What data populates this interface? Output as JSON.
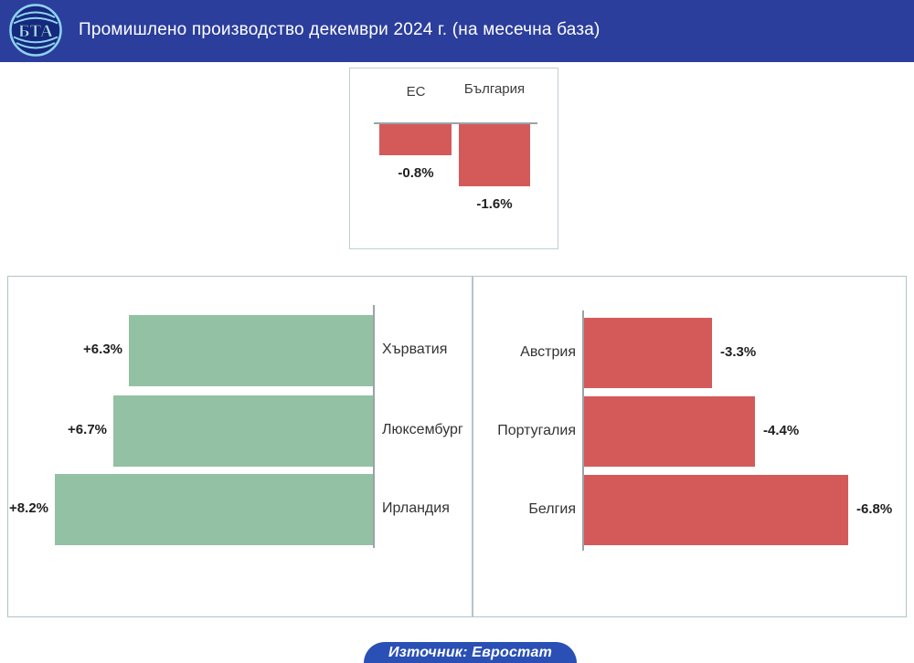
{
  "header": {
    "logo_text": "БТА",
    "title": "Промишлено производство декември 2024 г. (на месечна база)"
  },
  "footer": {
    "source_label": "Източник: Евростат"
  },
  "colors": {
    "header_bg": "#2b3e9c",
    "footer_bg": "#2a50b5",
    "negative_bar": "#d45a5a",
    "positive_bar": "#93c1a3",
    "axis_line": "#9aa3a8"
  },
  "chart_data": [
    {
      "id": "eu-bulgaria-summary",
      "type": "bar",
      "orientation": "vertical",
      "categories": [
        "ЕС",
        "България"
      ],
      "values": [
        -0.8,
        -1.6
      ],
      "labels": [
        "-0.8%",
        "-1.6%"
      ],
      "bar_color": "#d45a5a",
      "baseline": 0,
      "legend_position": "top"
    },
    {
      "id": "top-gainers",
      "type": "bar",
      "orientation": "horizontal-leftward",
      "categories": [
        "Хърватия",
        "Люксембург",
        "Ирландия"
      ],
      "values": [
        6.3,
        6.7,
        8.2
      ],
      "labels": [
        "+6.3%",
        "+6.7%",
        "+8.2%"
      ],
      "bar_color": "#93c1a3",
      "baseline": 0
    },
    {
      "id": "top-losers",
      "type": "bar",
      "orientation": "horizontal-rightward",
      "categories": [
        "Австрия",
        "Португалия",
        "Белгия"
      ],
      "values": [
        -3.3,
        -4.4,
        -6.8
      ],
      "labels": [
        "-3.3%",
        "-4.4%",
        "-6.8%"
      ],
      "bar_color": "#d45a5a",
      "baseline": 0
    }
  ]
}
